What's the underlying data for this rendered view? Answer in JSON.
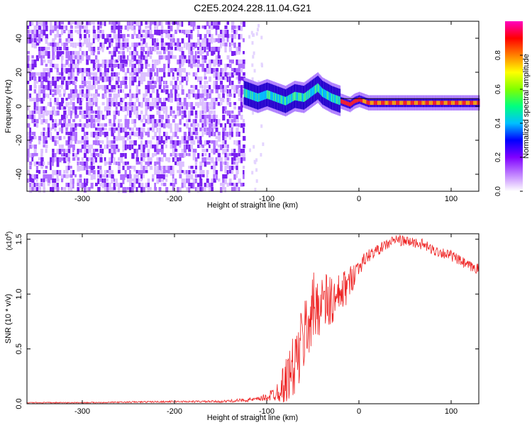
{
  "title": "C2E5.2024.228.11.04.G21",
  "chart_data": [
    {
      "type": "heatmap",
      "xlabel": "Height of straight line (km)",
      "ylabel": "Frequency (Hz)",
      "xlim": [
        -360,
        130
      ],
      "ylim": [
        -50,
        50
      ],
      "xticks": [
        -300,
        -200,
        -100,
        0,
        100
      ],
      "yticks": [
        -40,
        -20,
        0,
        20,
        40
      ],
      "grid": false,
      "colorbar": {
        "label": "Normalized spectral amplitude",
        "range": [
          0,
          1
        ],
        "ticks": [
          "0.0",
          "0.2",
          "0.4",
          "0.6",
          "0.8"
        ],
        "colors": [
          "#ffffff",
          "#c080ff",
          "#8000ff",
          "#0000ff",
          "#00c0ff",
          "#00ff80",
          "#80ff00",
          "#ffff00",
          "#ff8000",
          "#ff0000",
          "#ff00c0"
        ]
      },
      "noise_region_x": [
        -360,
        -125
      ],
      "ridge": {
        "x": [
          -125,
          -110,
          -100,
          -90,
          -80,
          -70,
          -60,
          -50,
          -45,
          -40,
          -30,
          -20,
          -15,
          -10,
          -5,
          0,
          10,
          20,
          30,
          40,
          50,
          60,
          70,
          80,
          90,
          100,
          110,
          120,
          130
        ],
        "y": [
          8,
          5,
          7,
          5,
          3,
          6,
          5,
          9,
          11,
          8,
          5,
          3,
          2,
          1,
          3,
          4,
          2,
          2,
          2,
          2,
          2,
          2,
          2,
          2,
          2,
          2,
          2,
          2,
          2
        ],
        "peak_amplitude_from_x": -20
      }
    },
    {
      "type": "line",
      "xlabel": "Height of straight line (km)",
      "ylabel": "SNR (10 * v/v)",
      "multiplier": "(x10",
      "multiplier_exp": "4",
      "multiplier_close": ")",
      "xlim": [
        -360,
        130
      ],
      "ylim": [
        0,
        1.55
      ],
      "xticks": [
        -300,
        -200,
        -100,
        0,
        100
      ],
      "yticks": [
        "0.0",
        "0.5",
        "1.0",
        "1.5"
      ],
      "grid": false,
      "series": [
        {
          "color": "#ee2222",
          "x": [
            -360,
            -300,
            -200,
            -150,
            -110,
            -100,
            -90,
            -80,
            -70,
            -65,
            -60,
            -55,
            -50,
            -45,
            -40,
            -35,
            -30,
            -25,
            -20,
            -15,
            -10,
            -5,
            0,
            5,
            10,
            20,
            30,
            40,
            50,
            60,
            70,
            80,
            90,
            100,
            110,
            120,
            130
          ],
          "y": [
            0.01,
            0.01,
            0.02,
            0.02,
            0.04,
            0.06,
            0.1,
            0.2,
            0.35,
            0.45,
            0.6,
            0.75,
            0.85,
            0.9,
            0.95,
            0.9,
            0.95,
            0.9,
            1.0,
            1.05,
            1.1,
            1.2,
            1.25,
            1.3,
            1.35,
            1.4,
            1.45,
            1.5,
            1.48,
            1.47,
            1.45,
            1.4,
            1.38,
            1.35,
            1.3,
            1.25,
            1.23
          ],
          "noise_amplitude": [
            0.005,
            0.005,
            0.008,
            0.01,
            0.02,
            0.04,
            0.08,
            0.2,
            0.3,
            0.35,
            0.35,
            0.35,
            0.35,
            0.3,
            0.3,
            0.3,
            0.28,
            0.25,
            0.2,
            0.18,
            0.15,
            0.12,
            0.08,
            0.07,
            0.06,
            0.05,
            0.05,
            0.05,
            0.05,
            0.05,
            0.05,
            0.05,
            0.05,
            0.05,
            0.05,
            0.05,
            0.05
          ]
        }
      ]
    }
  ]
}
